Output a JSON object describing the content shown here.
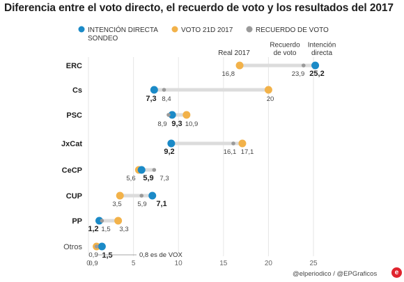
{
  "title": "Diferencia entre el voto directo, el recuerdo de voto y los resultados del 2017",
  "credit": "@elperiodico / @EPGraficos",
  "logo_text": "e",
  "chart_data": {
    "type": "scatter",
    "categories": [
      "ERC",
      "Cs",
      "PSC",
      "JxCat",
      "CeCP",
      "CUP",
      "PP",
      "Otros"
    ],
    "series": [
      {
        "name": "INTENCIÓN DIRECTA SONDEO",
        "color": "#1b8ac7",
        "values": [
          25.2,
          7.3,
          9.3,
          9.2,
          5.9,
          7.1,
          1.2,
          1.5
        ]
      },
      {
        "name": "VOTO 21D 2017",
        "color": "#f2b24a",
        "values": [
          16.8,
          20,
          10.9,
          17.1,
          5.6,
          3.5,
          3.3,
          0.9
        ]
      },
      {
        "name": "RECUERDO DE VOTO",
        "color": "#9a9a9a",
        "values": [
          23.9,
          8.4,
          8.9,
          16.1,
          7.3,
          5.9,
          1.5,
          0.9
        ]
      }
    ],
    "legend": [
      {
        "label": "INTENCIÓN DIRECTA",
        "label2": "SONDEO",
        "color": "#1b8ac7"
      },
      {
        "label": "VOTO 21D 2017",
        "label2": "",
        "color": "#f2b24a"
      },
      {
        "label": "RECUERDO DE VOTO",
        "label2": "",
        "color": "#9a9a9a"
      }
    ],
    "column_headers": [
      {
        "lines": [
          "Real 2017"
        ]
      },
      {
        "lines": [
          "Recuerdo",
          "de voto"
        ]
      },
      {
        "lines": [
          "Intención",
          "directa"
        ]
      }
    ],
    "value_labels": [
      [
        {
          "text": "16,8",
          "bold": false
        },
        {
          "text": "23,9",
          "bold": false
        },
        {
          "text": "25,2",
          "bold": true
        }
      ],
      [
        {
          "text": "7,3",
          "bold": true
        },
        {
          "text": "8,4",
          "bold": false
        },
        {
          "text": "20",
          "bold": false
        }
      ],
      [
        {
          "text": "8,9",
          "bold": false
        },
        {
          "text": "9,3",
          "bold": true
        },
        {
          "text": "10,9",
          "bold": false
        }
      ],
      [
        {
          "text": "9,2",
          "bold": true
        },
        {
          "text": "16,1",
          "bold": false
        },
        {
          "text": "17,1",
          "bold": false
        }
      ],
      [
        {
          "text": "5,6",
          "bold": false
        },
        {
          "text": "5,9",
          "bold": true
        },
        {
          "text": "7,3",
          "bold": false
        }
      ],
      [
        {
          "text": "3,5",
          "bold": false
        },
        {
          "text": "5,9",
          "bold": false
        },
        {
          "text": "7,1",
          "bold": true
        }
      ],
      [
        {
          "text": "1,2",
          "bold": true
        },
        {
          "text": "1,5",
          "bold": false
        },
        {
          "text": "3,3",
          "bold": false
        }
      ],
      [
        {
          "text": "0,9",
          "bold": false
        },
        {
          "text": "0,9",
          "bold": false
        },
        {
          "text": "1,5",
          "bold": true
        }
      ]
    ],
    "annotation": "0,8 es de VOX",
    "x_ticks": [
      0,
      5,
      10,
      15,
      20,
      25
    ],
    "xlim": [
      0,
      25.2
    ],
    "grid": true,
    "legend_position": "top"
  }
}
